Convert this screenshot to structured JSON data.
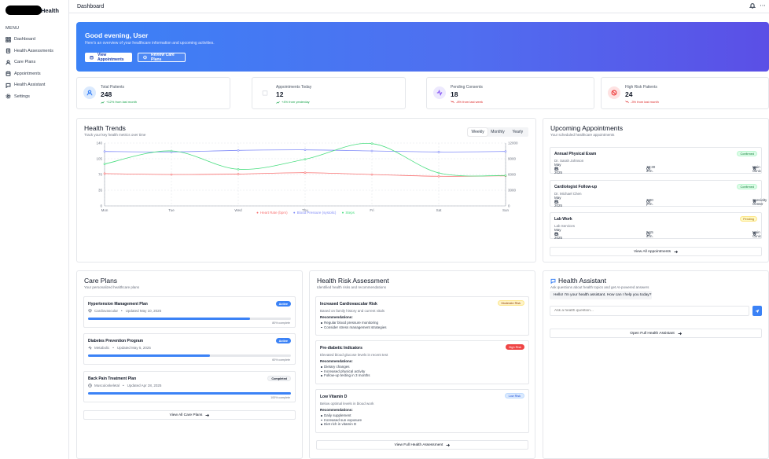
{
  "sidebar": {
    "brand_suffix": "Health",
    "menu_title": "MENU",
    "items": [
      {
        "label": "Dashboard",
        "icon": "grid-icon"
      },
      {
        "label": "Health Assessments",
        "icon": "clipboard-icon"
      },
      {
        "label": "Care Plans",
        "icon": "user-icon"
      },
      {
        "label": "Appointments",
        "icon": "calendar-icon"
      },
      {
        "label": "Health Assistant",
        "icon": "chat-icon"
      },
      {
        "label": "Settings",
        "icon": "gear-icon"
      }
    ]
  },
  "header": {
    "title": "Dashboard"
  },
  "hero": {
    "greeting": "Good evening, User",
    "subtitle": "Here's an overview of your healthcare information and upcoming activities.",
    "btn_appointments": "View Appointments",
    "btn_careplans": "Review Care Plans"
  },
  "stats": [
    {
      "label": "Total Patients",
      "value": "248",
      "trend": "+12% from last month",
      "dir": "up",
      "color": "#3b82f6",
      "bg": "#dbeafe",
      "icon": "users-icon"
    },
    {
      "label": "Appointments Today",
      "value": "12",
      "trend": "+4% from yesterday",
      "dir": "up",
      "color": "#d1d5db",
      "bg": "#ffffff",
      "icon": "calendar-icon"
    },
    {
      "label": "Pending Consents",
      "value": "18",
      "trend": "-8% from last week",
      "dir": "down",
      "color": "#8b5cf6",
      "bg": "#ede9fe",
      "icon": "activity-icon"
    },
    {
      "label": "High Risk Patients",
      "value": "24",
      "trend": "-3% from last month",
      "dir": "down",
      "color": "#ef4444",
      "bg": "#fee2e2",
      "icon": "alert-icon"
    }
  ],
  "trends": {
    "title": "Health Trends",
    "subtitle": "Track your key health metrics over time",
    "tabs": [
      "Weekly",
      "Monthly",
      "Yearly"
    ],
    "active_tab": "Weekly"
  },
  "chart_data": {
    "type": "line",
    "categories": [
      "Mon",
      "Tue",
      "Wed",
      "Thu",
      "Fri",
      "Sat",
      "Sun"
    ],
    "y_left": {
      "ticks": [
        0,
        35,
        70,
        105,
        140
      ],
      "range": [
        0,
        140
      ]
    },
    "y_right": {
      "ticks": [
        0,
        3000,
        6000,
        9000,
        12000
      ],
      "range": [
        0,
        12000
      ]
    },
    "series": [
      {
        "name": "Heart Rate (bpm)",
        "axis": "left",
        "color": "#f87171",
        "values": [
          72,
          70,
          71,
          74,
          70,
          66,
          67
        ]
      },
      {
        "name": "Blood Pressure (systolic)",
        "axis": "right",
        "color": "#818cf8",
        "values": [
          10400,
          10300,
          10600,
          10700,
          10500,
          10300,
          10400
        ]
      },
      {
        "name": "Steps",
        "axis": "right",
        "color": "#4ade80",
        "values": [
          8000,
          10500,
          7000,
          8900,
          11900,
          6300,
          5800
        ]
      }
    ],
    "grid": true,
    "legend": "bottom"
  },
  "appointments": {
    "title": "Upcoming Appointments",
    "subtitle": "Your scheduled healthcare appointments",
    "items": [
      {
        "title": "Annual Physical Exam",
        "doctor": "Dr. Sarah Johnson",
        "status": "Confirmed",
        "date": "May 18, 2025",
        "time": "10:30 a.m.",
        "location": "Main Clinic"
      },
      {
        "title": "Cardiologist Follow-up",
        "doctor": "Dr. Michael Chen",
        "status": "Confirmed",
        "date": "May 22, 2025",
        "time": "2:00 p.m.",
        "location": "Specialty Center"
      },
      {
        "title": "Lab Work",
        "doctor": "Lab Services",
        "status": "Pending",
        "date": "May 29, 2025",
        "time": "9:15 a.m.",
        "location": "Main Clinic"
      }
    ],
    "view_all": "View All Appointments"
  },
  "careplans": {
    "title": "Care Plans",
    "subtitle": "Your personalized healthcare plans",
    "items": [
      {
        "title": "Hypertension Management Plan",
        "category": "Cardiovascular",
        "updated": "Updated May 10, 2025",
        "status": "Active",
        "progress": 0.8,
        "progress_text": "80% complete"
      },
      {
        "title": "Diabetes Prevention Program",
        "category": "Metabolic",
        "updated": "Updated May 5, 2025",
        "status": "Active",
        "progress": 0.6,
        "progress_text": "60% complete"
      },
      {
        "title": "Back Pain Treatment Plan",
        "category": "Musculoskeletal",
        "updated": "Updated Apr 28, 2025",
        "status": "Completed",
        "progress": 1.0,
        "progress_text": "100% complete"
      }
    ],
    "view_all": "View All Care Plans"
  },
  "risk": {
    "title": "Health Risk Assessment",
    "subtitle": "Identified health risks and recommendations",
    "rec_label": "Recommendations:",
    "items": [
      {
        "title": "Increased Cardiovascular Risk",
        "desc": "Based on family history and current vitals",
        "level": "Moderate Risk",
        "recs": [
          "Regular blood pressure monitoring",
          "Consider stress management strategies"
        ]
      },
      {
        "title": "Pre-diabetic Indicators",
        "desc": "Elevated blood glucose levels in recent test",
        "level": "High Risk",
        "recs": [
          "Dietary changes",
          "Increased physical activity",
          "Follow-up testing in 3 months"
        ]
      },
      {
        "title": "Low Vitamin D",
        "desc": "Below optimal levels in blood work",
        "level": "Low Risk",
        "recs": [
          "Daily supplement",
          "Increased sun exposure",
          "Diet rich in vitamin D"
        ]
      }
    ],
    "view_all": "View Full Health Assessment"
  },
  "assistant": {
    "title": "Health Assistant",
    "subtitle": "Ask questions about health topics and get AI-powered answers",
    "greeting": "Hello! I'm your health assistant. How can I help you today?",
    "placeholder": "Ask a health question...",
    "open_btn": "Open Full Health Assistant"
  }
}
